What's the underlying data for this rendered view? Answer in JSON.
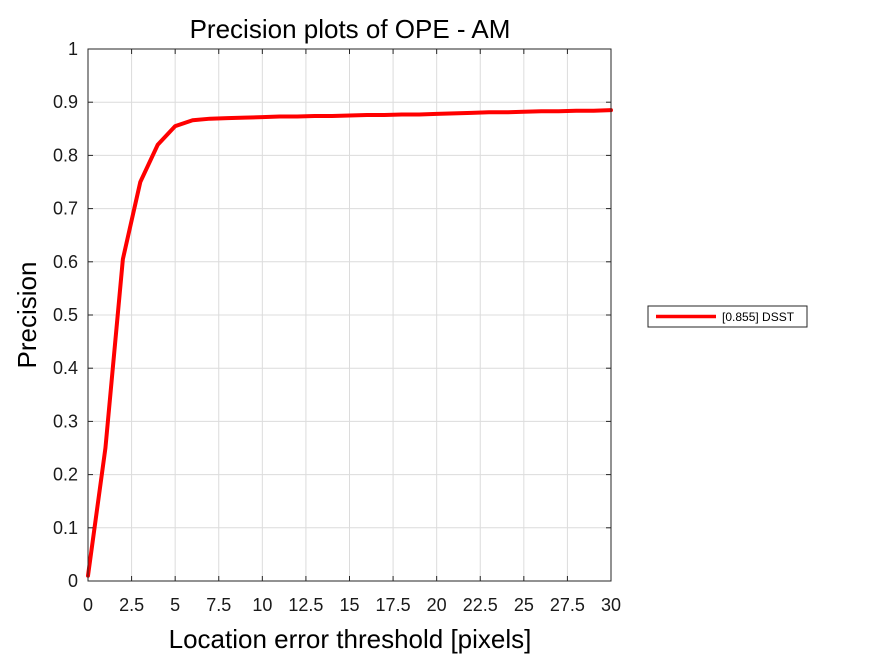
{
  "chart_data": {
    "type": "line",
    "title": "Precision plots of OPE - AM",
    "xlabel": "Location error threshold [pixels]",
    "ylabel": "Precision",
    "xlim": [
      0,
      30
    ],
    "ylim": [
      0,
      1
    ],
    "xticks": [
      0,
      2.5,
      5,
      7.5,
      10,
      12.5,
      15,
      17.5,
      20,
      22.5,
      25,
      27.5,
      30
    ],
    "xtick_labels": [
      "0",
      "2.5",
      "5",
      "7.5",
      "10",
      "12.5",
      "15",
      "17.5",
      "20",
      "22.5",
      "25",
      "27.5",
      "30"
    ],
    "yticks": [
      0,
      0.1,
      0.2,
      0.3,
      0.4,
      0.5,
      0.6,
      0.7,
      0.8,
      0.9,
      1
    ],
    "ytick_labels": [
      "0",
      "0.1",
      "0.2",
      "0.3",
      "0.4",
      "0.5",
      "0.6",
      "0.7",
      "0.8",
      "0.9",
      "1"
    ],
    "grid": true,
    "legend_position": "outside-right",
    "series": [
      {
        "name": "[0.855] DSST",
        "color": "#ff0000",
        "x": [
          0,
          1,
          2,
          3,
          4,
          5,
          6,
          7,
          8,
          9,
          10,
          11,
          12,
          13,
          14,
          15,
          16,
          17,
          18,
          19,
          20,
          21,
          22,
          23,
          24,
          25,
          26,
          27,
          28,
          29,
          30
        ],
        "y": [
          0.01,
          0.25,
          0.605,
          0.75,
          0.82,
          0.855,
          0.866,
          0.869,
          0.87,
          0.871,
          0.872,
          0.873,
          0.873,
          0.874,
          0.874,
          0.875,
          0.876,
          0.876,
          0.877,
          0.877,
          0.878,
          0.879,
          0.88,
          0.881,
          0.881,
          0.882,
          0.883,
          0.883,
          0.884,
          0.884,
          0.885
        ]
      }
    ]
  }
}
